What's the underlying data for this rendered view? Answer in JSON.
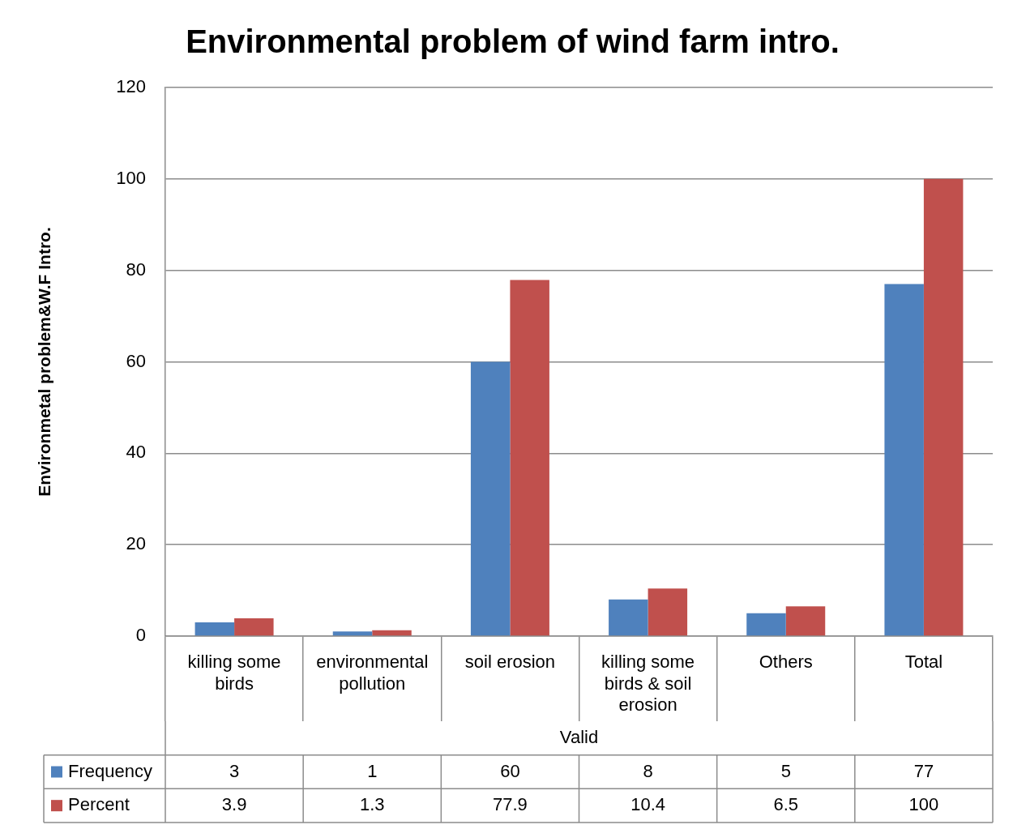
{
  "chart_data": {
    "type": "bar",
    "title": "Environmental problem of wind farm intro.",
    "ylabel": "Environmetal problem&W.F Intro.",
    "categories": [
      "killing some birds",
      "environmental pollution",
      "soil erosion",
      "killing some birds & soil erosion",
      "Others",
      "Total"
    ],
    "series": [
      {
        "name": "Frequency",
        "color": "#4f81bd",
        "values": [
          3,
          1,
          60,
          8,
          5,
          77
        ]
      },
      {
        "name": "Percent",
        "color": "#c0504d",
        "values": [
          3.9,
          1.3,
          77.9,
          10.4,
          6.5,
          100
        ]
      }
    ],
    "ylim": [
      0,
      120
    ],
    "yticks": [
      0,
      20,
      40,
      60,
      80,
      100,
      120
    ],
    "grid": "y",
    "legend": "bottom",
    "data_labels": true,
    "annotations": [
      "Valid"
    ]
  }
}
